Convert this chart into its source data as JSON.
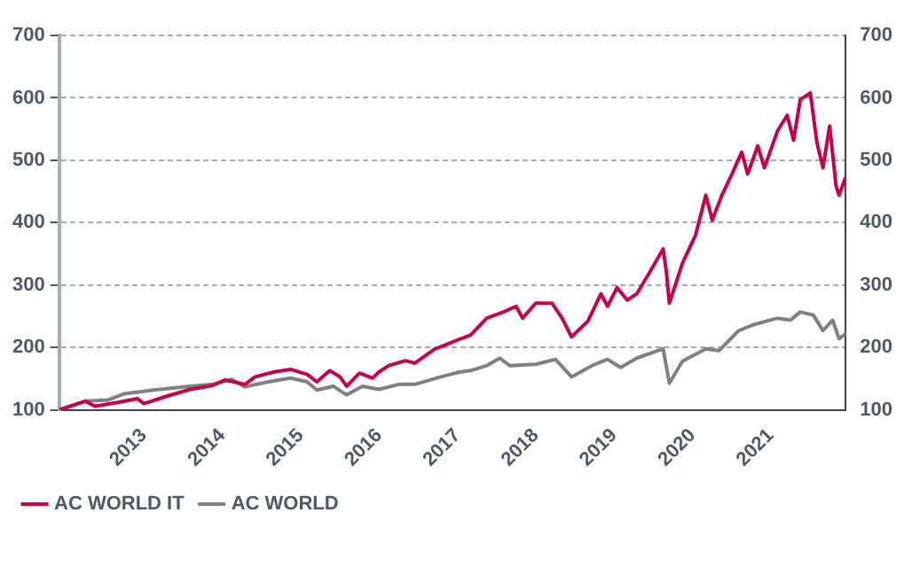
{
  "chart_data": {
    "type": "line",
    "xlim": [
      "2012-06-01",
      "2022-06-15"
    ],
    "xticks": [
      {
        "value": "2013-07-01",
        "label": "2013"
      },
      {
        "value": "2014-07-01",
        "label": "2014"
      },
      {
        "value": "2015-07-01",
        "label": "2015"
      },
      {
        "value": "2016-07-01",
        "label": "2016"
      },
      {
        "value": "2017-07-01",
        "label": "2017"
      },
      {
        "value": "2018-07-01",
        "label": "2018"
      },
      {
        "value": "2019-07-01",
        "label": "2019"
      },
      {
        "value": "2020-07-01",
        "label": "2020"
      },
      {
        "value": "2021-07-01",
        "label": "2021"
      }
    ],
    "ylim": [
      100,
      700
    ],
    "yticks": [
      100,
      200,
      300,
      400,
      500,
      600,
      700
    ],
    "y2lim": [
      100,
      700
    ],
    "y2ticks": [
      100,
      200,
      300,
      400,
      500,
      600,
      700
    ],
    "grid": "y",
    "legend": "bottom",
    "marker": "none",
    "line_style": "solid",
    "series": [
      {
        "name": "AC WORLD IT",
        "color": "#c8004b",
        "x": [
          "2012-06-01",
          "2012-10-01",
          "2012-11-15",
          "2013-03-01",
          "2013-06-01",
          "2013-07-01",
          "2013-10-15",
          "2014-02-01",
          "2014-05-15",
          "2014-07-15",
          "2014-10-15",
          "2014-12-01",
          "2015-03-01",
          "2015-05-15",
          "2015-08-01",
          "2015-09-15",
          "2015-11-15",
          "2016-01-01",
          "2016-02-01",
          "2016-04-01",
          "2016-06-01",
          "2016-07-01",
          "2016-08-15",
          "2016-11-01",
          "2016-12-15",
          "2017-03-15",
          "2017-07-01",
          "2017-09-01",
          "2017-11-15",
          "2018-02-01",
          "2018-04-01",
          "2018-05-01",
          "2018-07-01",
          "2018-09-15",
          "2018-11-01",
          "2018-12-15",
          "2019-03-01",
          "2019-05-01",
          "2019-06-01",
          "2019-07-15",
          "2019-09-01",
          "2019-10-15",
          "2019-12-15",
          "2020-02-15",
          "2020-03-01",
          "2020-03-15",
          "2020-05-15",
          "2020-07-15",
          "2020-09-01",
          "2020-10-01",
          "2020-11-15",
          "2021-01-01",
          "2021-02-15",
          "2021-03-15",
          "2021-05-01",
          "2021-06-01",
          "2021-08-01",
          "2021-09-15",
          "2021-10-15",
          "2021-11-15",
          "2022-01-01",
          "2022-02-01",
          "2022-03-01",
          "2022-04-01",
          "2022-05-01",
          "2022-05-15",
          "2022-06-15"
        ],
        "values": [
          100,
          114,
          106,
          112,
          118,
          110,
          122,
          133,
          139,
          148,
          141,
          153,
          161,
          165,
          157,
          145,
          163,
          153,
          138,
          159,
          151,
          161,
          171,
          179,
          175,
          197,
          212,
          220,
          247,
          257,
          266,
          247,
          271,
          271,
          247,
          217,
          242,
          286,
          266,
          296,
          276,
          286,
          321,
          358,
          321,
          271,
          335,
          380,
          444,
          404,
          444,
          478,
          513,
          478,
          523,
          488,
          547,
          572,
          532,
          597,
          608,
          528,
          488,
          555,
          459,
          444,
          473
        ]
      },
      {
        "name": "AC WORLD",
        "color": "#808080",
        "x": [
          "2012-06-01",
          "2012-10-01",
          "2013-01-15",
          "2013-04-01",
          "2013-08-15",
          "2014-01-01",
          "2014-05-15",
          "2014-08-15",
          "2014-10-15",
          "2015-02-01",
          "2015-05-15",
          "2015-08-01",
          "2015-09-15",
          "2015-12-01",
          "2016-02-01",
          "2016-04-15",
          "2016-07-01",
          "2016-10-01",
          "2016-12-15",
          "2017-04-15",
          "2017-07-15",
          "2017-09-01",
          "2017-11-15",
          "2018-01-15",
          "2018-03-01",
          "2018-07-01",
          "2018-10-01",
          "2018-12-15",
          "2019-04-01",
          "2019-06-01",
          "2019-08-01",
          "2019-10-15",
          "2020-02-15",
          "2020-03-15",
          "2020-05-15",
          "2020-09-01",
          "2020-11-01",
          "2021-02-01",
          "2021-04-15",
          "2021-08-01",
          "2021-10-01",
          "2021-11-15",
          "2022-01-15",
          "2022-03-01",
          "2022-04-15",
          "2022-05-15",
          "2022-06-15"
        ],
        "values": [
          100,
          114,
          116,
          126,
          132,
          137,
          141,
          149,
          137,
          145,
          151,
          145,
          132,
          138,
          124,
          138,
          133,
          141,
          141,
          153,
          161,
          163,
          171,
          183,
          171,
          173,
          181,
          153,
          173,
          181,
          168,
          183,
          198,
          143,
          178,
          198,
          195,
          227,
          237,
          247,
          244,
          257,
          252,
          227,
          244,
          214,
          222
        ]
      }
    ]
  }
}
